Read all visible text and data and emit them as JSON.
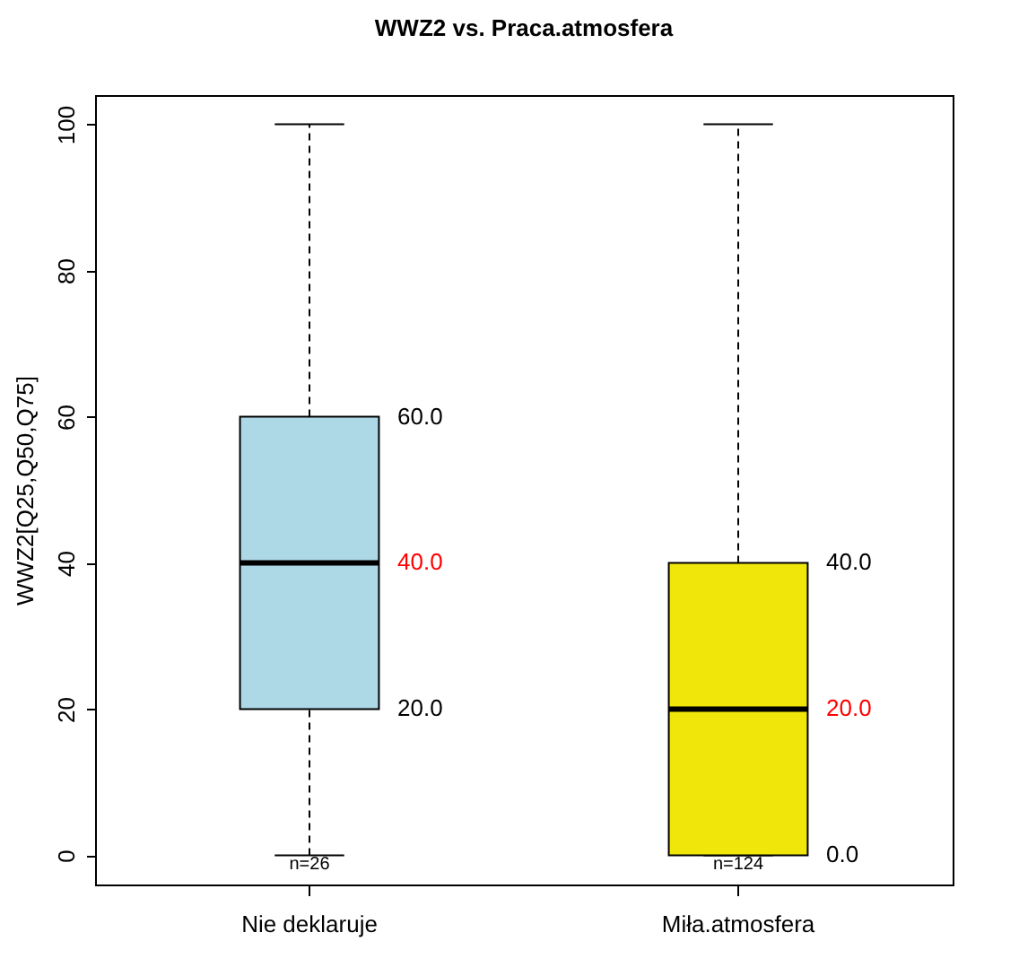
{
  "chart_data": {
    "type": "box",
    "title": "WWZ2 vs. Praca.atmosfera",
    "ylabel": "WWZ2[Q25,Q50,Q75]",
    "categories": [
      "Nie deklaruje",
      "Miła.atmosfera"
    ],
    "boxes": [
      {
        "low": 0,
        "q1": 20,
        "median": 40,
        "q3": 60,
        "high": 100
      },
      {
        "low": 0,
        "q1": 0,
        "median": 20,
        "q3": 40,
        "high": 100
      }
    ],
    "colors": [
      "#add8e6",
      "#f0e60a"
    ],
    "ylim": [
      -4,
      104
    ],
    "yticks": [
      0,
      20,
      40,
      60,
      80,
      100
    ],
    "grid": false,
    "line_style": "dashed",
    "annotations": [
      "60.0",
      "40.0",
      "20.0",
      "40.0",
      "20.0",
      "0.0",
      "n=26",
      "n=124"
    ]
  }
}
